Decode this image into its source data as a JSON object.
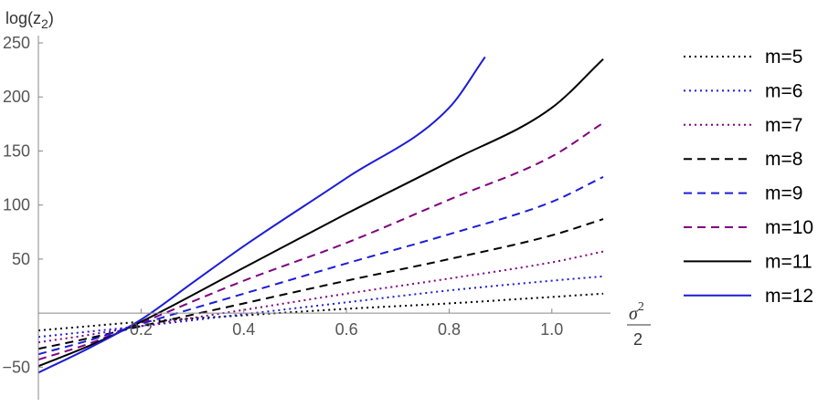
{
  "chart_data": {
    "type": "line",
    "ylabel": "log(z",
    "ylabel_sub": "2",
    "ylabel_close": ")",
    "xlabel_num": "σ",
    "xlabel_sup": "2",
    "xlabel_den": "2",
    "xlim": [
      0,
      1.1
    ],
    "ylim": [
      -75,
      250
    ],
    "x_ticks": [
      {
        "value": 0.2,
        "label": "0.2"
      },
      {
        "value": 0.4,
        "label": "0.4"
      },
      {
        "value": 0.6,
        "label": "0.6"
      },
      {
        "value": 0.8,
        "label": "0.8"
      },
      {
        "value": 1.0,
        "label": "1.0"
      }
    ],
    "y_ticks": [
      {
        "value": -50,
        "label": "−50"
      },
      {
        "value": 50,
        "label": "50"
      },
      {
        "value": 100,
        "label": "100"
      },
      {
        "value": 150,
        "label": "150"
      },
      {
        "value": 200,
        "label": "200"
      },
      {
        "value": 250,
        "label": "250"
      }
    ],
    "legend_position": "right",
    "series": [
      {
        "name": "m=5",
        "color": "#000000",
        "style": "dotted",
        "x": [
          0.0,
          0.1,
          0.2,
          0.4,
          0.6,
          0.8,
          1.0,
          1.1
        ],
        "y": [
          -16,
          -12,
          -8,
          -2,
          4,
          9,
          15,
          18
        ]
      },
      {
        "name": "m=6",
        "color": "#1c1cd6",
        "style": "dotted",
        "x": [
          0.0,
          0.1,
          0.2,
          0.4,
          0.6,
          0.8,
          1.0,
          1.1
        ],
        "y": [
          -22,
          -17,
          -12,
          -1,
          10,
          21,
          30,
          34
        ]
      },
      {
        "name": "m=7",
        "color": "#800080",
        "style": "dotted",
        "x": [
          0.0,
          0.1,
          0.2,
          0.4,
          0.6,
          0.8,
          1.0,
          1.1
        ],
        "y": [
          -27,
          -20,
          -12,
          3,
          18,
          32,
          47,
          57
        ]
      },
      {
        "name": "m=8",
        "color": "#000000",
        "style": "dashed",
        "x": [
          0.0,
          0.1,
          0.2,
          0.4,
          0.6,
          0.8,
          1.0,
          1.1
        ],
        "y": [
          -33,
          -23,
          -12,
          9,
          30,
          50,
          72,
          87
        ]
      },
      {
        "name": "m=9",
        "color": "#1c1cd6",
        "style": "dashed",
        "x": [
          0.0,
          0.1,
          0.2,
          0.4,
          0.6,
          0.8,
          1.0,
          1.1
        ],
        "y": [
          -38,
          -25,
          -10,
          18,
          46,
          73,
          103,
          126
        ]
      },
      {
        "name": "m=10",
        "color": "#800080",
        "style": "dashed",
        "x": [
          0.0,
          0.1,
          0.2,
          0.4,
          0.6,
          0.8,
          1.0,
          1.1
        ],
        "y": [
          -43,
          -28,
          -9,
          30,
          65,
          105,
          145,
          176
        ]
      },
      {
        "name": "m=11",
        "color": "#000000",
        "style": "solid",
        "x": [
          0.0,
          0.1,
          0.2,
          0.4,
          0.6,
          0.8,
          1.0,
          1.1
        ],
        "y": [
          -49,
          -30,
          -8,
          42,
          92,
          140,
          190,
          235
        ]
      },
      {
        "name": "m=12",
        "color": "#1c1cd6",
        "style": "solid",
        "x": [
          0.0,
          0.1,
          0.2,
          0.3,
          0.4,
          0.6,
          0.8,
          0.87
        ],
        "y": [
          -55,
          -32,
          -6,
          28,
          62,
          125,
          190,
          237
        ]
      }
    ]
  }
}
